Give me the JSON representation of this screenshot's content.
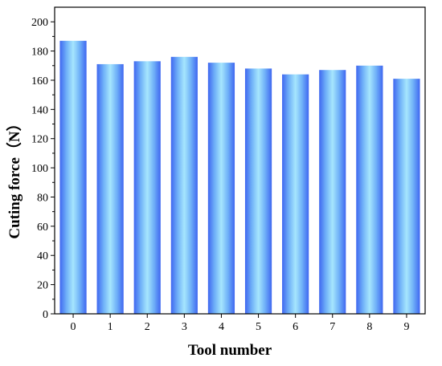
{
  "chart_data": {
    "type": "bar",
    "xlabel": "Tool number",
    "ylabel": "Cuting force（N）",
    "categories": [
      "0",
      "1",
      "2",
      "3",
      "4",
      "5",
      "6",
      "7",
      "8",
      "9"
    ],
    "values": [
      187,
      171,
      173,
      176,
      172,
      168,
      164,
      167,
      170,
      161
    ],
    "ylim": [
      0,
      210
    ],
    "yticks": [
      0,
      20,
      40,
      60,
      80,
      100,
      120,
      140,
      160,
      180,
      200
    ],
    "grid": false,
    "legend": "none",
    "bar_gradient": [
      "#3f67f0",
      "#6fb0f8",
      "#a6e6fd",
      "#6fb0f8",
      "#3f67f0"
    ]
  }
}
